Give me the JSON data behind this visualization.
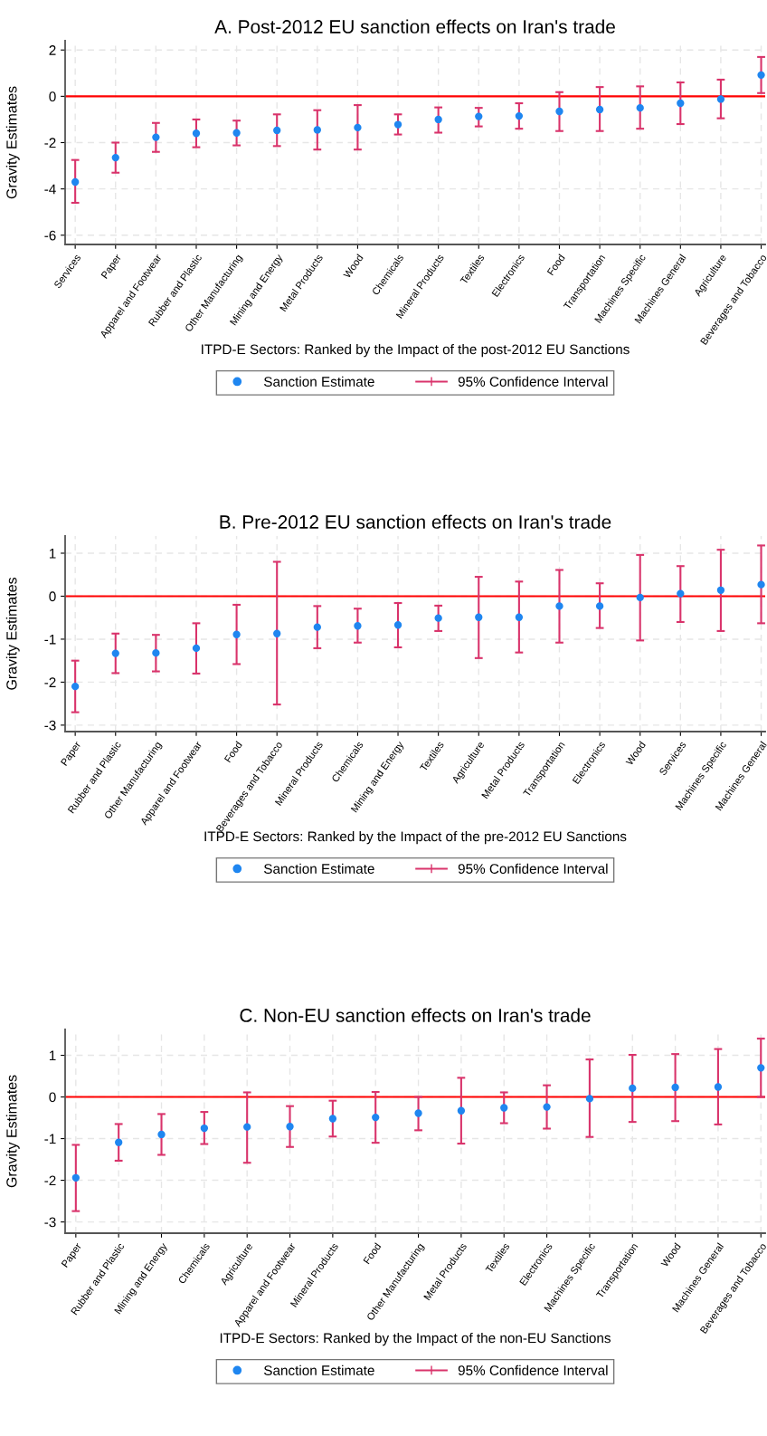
{
  "chart_data": [
    {
      "type": "scatter",
      "title": "A. Post-2012 EU sanction effects on Iran's trade",
      "xlabel": "ITPD-E Sectors: Ranked by the Impact of the post-2012 EU Sanctions",
      "ylabel": "Gravity Estimates",
      "categories": [
        "Services",
        "Paper",
        "Apparel and Footwear",
        "Rubber and Plastic",
        "Other Manufacturing",
        "Mining and Energy",
        "Metal Products",
        "Wood",
        "Chemicals",
        "Mineral Products",
        "Textiles",
        "Electronics",
        "Food",
        "Transportation",
        "Machines Specific",
        "Machines General",
        "Agriculture",
        "Beverages and Tobacco"
      ],
      "series": [
        {
          "name": "Sanction Estimate",
          "color": "#1f86f0",
          "marker": "circle",
          "values": [
            -3.7,
            -2.65,
            -1.77,
            -1.6,
            -1.58,
            -1.47,
            -1.45,
            -1.35,
            -1.22,
            -1.0,
            -0.87,
            -0.85,
            -0.65,
            -0.57,
            -0.5,
            -0.3,
            -0.12,
            0.92
          ],
          "errors": [
            [
              -4.6,
              -2.75
            ],
            [
              -3.3,
              -2.0
            ],
            [
              -2.4,
              -1.15
            ],
            [
              -2.2,
              -1.0
            ],
            [
              -2.12,
              -1.05
            ],
            [
              -2.15,
              -0.78
            ],
            [
              -2.3,
              -0.6
            ],
            [
              -2.3,
              -0.38
            ],
            [
              -1.65,
              -0.78
            ],
            [
              -1.57,
              -0.48
            ],
            [
              -1.3,
              -0.5
            ],
            [
              -1.4,
              -0.3
            ],
            [
              -1.5,
              0.18
            ],
            [
              -1.5,
              0.4
            ],
            [
              -1.4,
              0.43
            ],
            [
              -1.2,
              0.6
            ],
            [
              -0.95,
              0.72
            ],
            [
              0.14,
              1.7
            ]
          ]
        }
      ],
      "annotations": [
        "95% Confidence Interval"
      ],
      "ylim": [
        -6.4,
        2.4
      ],
      "yticks": [
        -6,
        -4,
        -2,
        0,
        2
      ],
      "ref_lines": [
        {
          "axis": "y",
          "value": 0,
          "color": "#ff0000"
        }
      ],
      "grid": true,
      "legend": "bottom"
    },
    {
      "type": "scatter",
      "title": "B. Pre-2012 EU sanction effects on Iran's trade",
      "xlabel": "ITPD-E Sectors: Ranked by the Impact of the pre-2012 EU Sanctions",
      "ylabel": "Gravity Estimates",
      "categories": [
        "Paper",
        "Rubber and Plastic",
        "Other Manufacturing",
        "Apparel and Footwear",
        "Food",
        "Beverages and Tobacco",
        "Mineral Products",
        "Chemicals",
        "Mining and Energy",
        "Textiles",
        "Agriculture",
        "Metal Products",
        "Transportation",
        "Electronics",
        "Wood",
        "Services",
        "Machines Specific",
        "Machines General"
      ],
      "series": [
        {
          "name": "Sanction Estimate",
          "color": "#1f86f0",
          "marker": "circle",
          "values": [
            -2.1,
            -1.33,
            -1.32,
            -1.21,
            -0.89,
            -0.87,
            -0.72,
            -0.69,
            -0.67,
            -0.51,
            -0.49,
            -0.49,
            -0.23,
            -0.23,
            -0.03,
            0.06,
            0.14,
            0.27
          ],
          "errors": [
            [
              -2.7,
              -1.5
            ],
            [
              -1.79,
              -0.87
            ],
            [
              -1.75,
              -0.9
            ],
            [
              -1.8,
              -0.63
            ],
            [
              -1.58,
              -0.2
            ],
            [
              -2.52,
              0.8
            ],
            [
              -1.21,
              -0.23
            ],
            [
              -1.08,
              -0.29
            ],
            [
              -1.19,
              -0.16
            ],
            [
              -0.81,
              -0.22
            ],
            [
              -1.44,
              0.45
            ],
            [
              -1.31,
              0.34
            ],
            [
              -1.08,
              0.61
            ],
            [
              -0.74,
              0.3
            ],
            [
              -1.03,
              0.96
            ],
            [
              -0.6,
              0.7
            ],
            [
              -0.81,
              1.08
            ],
            [
              -0.63,
              1.18
            ]
          ]
        }
      ],
      "annotations": [
        "95% Confidence Interval"
      ],
      "ylim": [
        -3.15,
        1.4
      ],
      "yticks": [
        -3,
        -2,
        -1,
        0,
        1
      ],
      "ref_lines": [
        {
          "axis": "y",
          "value": 0,
          "color": "#ff0000"
        }
      ],
      "grid": true,
      "legend": "bottom"
    },
    {
      "type": "scatter",
      "title": "C. Non-EU sanction effects on Iran's trade",
      "xlabel": "ITPD-E Sectors: Ranked by the Impact of the non-EU Sanctions",
      "ylabel": "Gravity Estimates",
      "categories": [
        "Paper",
        "Rubber and Plastic",
        "Mining and Energy",
        "Chemicals",
        "Agriculture",
        "Apparel and Footwear",
        "Mineral Products",
        "Food",
        "Other Manufacturing",
        "Metal Products",
        "Textiles",
        "Electronics",
        "Machines Specific",
        "Transportation",
        "Wood",
        "Machines General",
        "Beverages and Tobacco"
      ],
      "series": [
        {
          "name": "Sanction Estimate",
          "color": "#1f86f0",
          "marker": "circle",
          "values": [
            -1.94,
            -1.09,
            -0.9,
            -0.75,
            -0.72,
            -0.71,
            -0.52,
            -0.49,
            -0.39,
            -0.33,
            -0.26,
            -0.24,
            -0.04,
            0.21,
            0.23,
            0.24,
            0.7
          ],
          "errors": [
            [
              -2.74,
              -1.15
            ],
            [
              -1.53,
              -0.65
            ],
            [
              -1.39,
              -0.41
            ],
            [
              -1.13,
              -0.36
            ],
            [
              -1.58,
              0.11
            ],
            [
              -1.2,
              -0.22
            ],
            [
              -0.95,
              -0.09
            ],
            [
              -1.1,
              0.12
            ],
            [
              -0.8,
              0.0
            ],
            [
              -1.12,
              0.46
            ],
            [
              -0.63,
              0.11
            ],
            [
              -0.76,
              0.28
            ],
            [
              -0.96,
              0.9
            ],
            [
              -0.6,
              1.01
            ],
            [
              -0.58,
              1.03
            ],
            [
              -0.66,
              1.15
            ],
            [
              0.0,
              1.4
            ]
          ]
        }
      ],
      "annotations": [
        "95% Confidence Interval"
      ],
      "ylim": [
        -3.27,
        1.62
      ],
      "yticks": [
        -3,
        -2,
        -1,
        0,
        1
      ],
      "ref_lines": [
        {
          "axis": "y",
          "value": 0,
          "color": "#ff0000"
        }
      ],
      "grid": true,
      "legend": "bottom"
    }
  ]
}
